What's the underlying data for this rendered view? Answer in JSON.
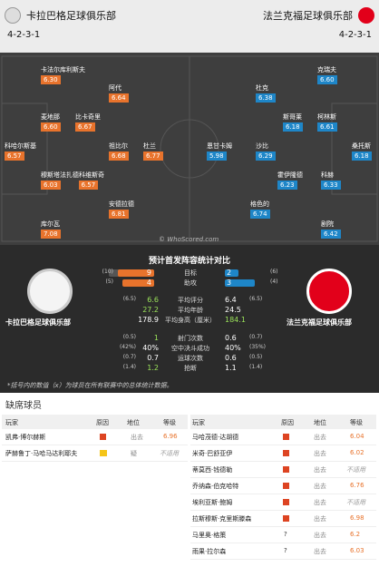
{
  "header": {
    "home_name": "卡拉巴格足球俱乐部",
    "away_name": "法兰克福足球俱乐部",
    "home_form": "4-2-3-1",
    "away_form": "4-2-3-1"
  },
  "home_players": [
    {
      "name": "卡法尔库利斯夫",
      "rating": "6.30"
    },
    {
      "name": "阿代",
      "rating": "6.64"
    },
    {
      "name": "麦地那",
      "rating": "6.60"
    },
    {
      "name": "比卡奇里",
      "rating": "6.67"
    },
    {
      "name": "科哈尔斯基",
      "rating": "6.57"
    },
    {
      "name": "祖比尔",
      "rating": "6.68"
    },
    {
      "name": "杜兰",
      "rating": "6.77"
    },
    {
      "name": "穆斯塔法扎德科维斯奇",
      "rating": "6.03"
    },
    {
      "name": "6.57",
      "rating": ""
    },
    {
      "name": "安德拉德",
      "rating": "6.81"
    },
    {
      "name": "库尔瓦",
      "rating": "7.08"
    }
  ],
  "away_players": [
    {
      "name": "克瑞夫",
      "rating": "6.60"
    },
    {
      "name": "杜克",
      "rating": "6.38"
    },
    {
      "name": "斯哥莱",
      "rating": "6.18"
    },
    {
      "name": "柯林斯",
      "rating": "6.61"
    },
    {
      "name": "桑托斯",
      "rating": "6.18"
    },
    {
      "name": "恩甘卡姆",
      "rating": "5.98"
    },
    {
      "name": "沙比",
      "rating": "6.29"
    },
    {
      "name": "霍伊隆德",
      "rating": "6.23"
    },
    {
      "name": "科赫",
      "rating": "6.33"
    },
    {
      "name": "格色的",
      "rating": "6.74"
    },
    {
      "name": "剧院",
      "rating": "6.42"
    }
  ],
  "watermark": "© WhoScored.com",
  "stats": {
    "title": "预计首发阵容统计对比",
    "home_club": "卡拉巴格足球俱乐部",
    "away_club": "法兰克福足球俱乐部",
    "bar_rows": [
      {
        "label": "目标",
        "lv": "9",
        "rv": "2",
        "lp": "(10)",
        "rp": "(6)",
        "lf": 0.9,
        "rf": 0.33
      },
      {
        "label": "助攻",
        "lv": "4",
        "rv": "3",
        "lp": "(5)",
        "rp": "(4)",
        "lf": 0.8,
        "rf": 0.75
      }
    ],
    "rows": [
      {
        "label": "平均评分",
        "lp": "(6.5)",
        "lv": "6.6",
        "rv": "6.4",
        "rp": "(6.5)"
      },
      {
        "label": "平均年龄",
        "lp": "",
        "lv": "27.2",
        "rv": "24.5",
        "rp": ""
      },
      {
        "label": "平均身高（厘米）",
        "lp": "",
        "lv": "178.9",
        "rv": "184.1",
        "rp": ""
      },
      {
        "label": "射门次数",
        "lp": "(0.5)",
        "lv": "1",
        "rv": "0.6",
        "rp": "(0.7)"
      },
      {
        "label": "空中决斗成功",
        "lp": "(42%)",
        "lv": "40%",
        "rv": "40%",
        "rp": "(35%)"
      },
      {
        "label": "运球次数",
        "lp": "(0.7)",
        "lv": "0.7",
        "rv": "0.6",
        "rp": "(0.5)"
      },
      {
        "label": "抢断",
        "lp": "(1.4)",
        "lv": "1.2",
        "rv": "1.1",
        "rp": "(1.4)"
      }
    ],
    "note": "*括号内的数值（x）为球员在所有联赛中的总体统计数据。"
  },
  "missing": {
    "title": "缺席球员",
    "headers": {
      "player": "玩家",
      "reason": "原因",
      "status": "地位",
      "level": "等级"
    },
    "home": [
      {
        "player": "凯弗·博尔赫斯",
        "status": "出去",
        "level": "6.96"
      },
      {
        "player": "萨赫鲁丁·马哈马达利耶夫",
        "status": "疑",
        "level": "不适用"
      }
    ],
    "away": [
      {
        "player": "马哈茂德·达胡德",
        "status": "出去",
        "level": "6.04"
      },
      {
        "player": "米奇·巴舒亚伊",
        "status": "出去",
        "level": "6.02"
      },
      {
        "player": "蒂莫西·钱德勒",
        "status": "出去",
        "level": "不适用"
      },
      {
        "player": "乔纳森·伯克哈特",
        "status": "出去",
        "level": "6.76"
      },
      {
        "player": "埃利亚斯·鲍姆",
        "status": "出去",
        "level": "不适用"
      },
      {
        "player": "拉斯穆斯·克里斯滕森",
        "status": "出去",
        "level": "6.98"
      },
      {
        "player": "马里奥·格策",
        "status": "出去",
        "level": "6.2"
      },
      {
        "player": "雨果·拉尔森",
        "status": "出去",
        "level": "6.03"
      }
    ]
  },
  "colors": {
    "home": "#e8732c",
    "away": "#1e86c8",
    "pitch": "#3e3e3e"
  }
}
